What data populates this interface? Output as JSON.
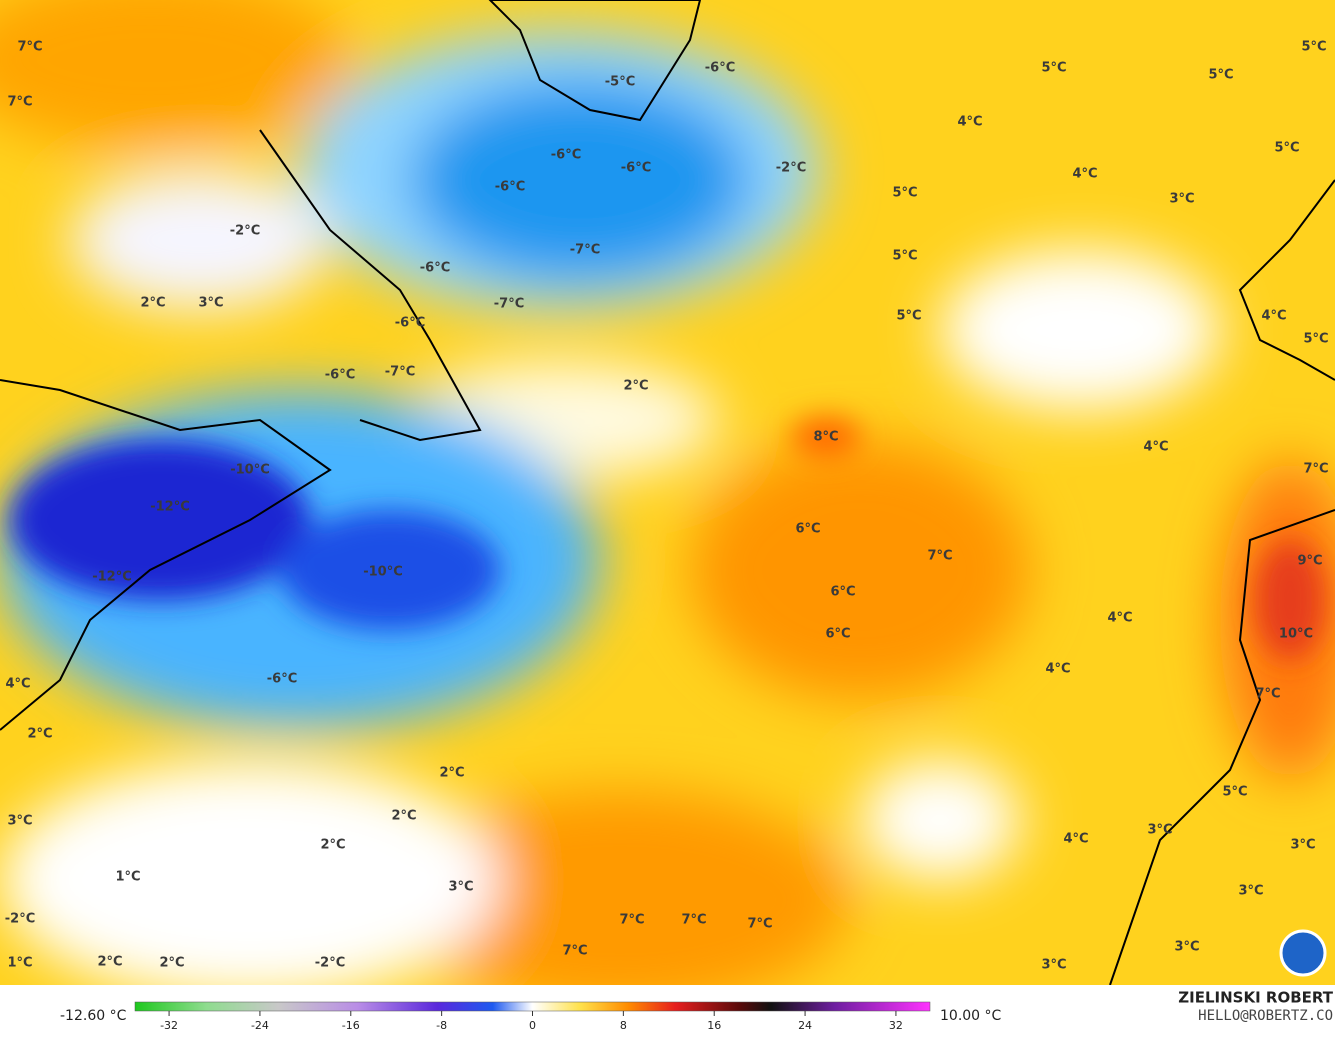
{
  "labels": [
    "7°C",
    "7°C",
    "-2°C",
    "2°C",
    "3°C",
    "-6°C",
    "-6°C",
    "-7°C",
    "-10°C",
    "-12°C",
    "-12°C",
    "-10°C",
    "-6°C",
    "4°C",
    "2°C",
    "3°C",
    "1°C",
    "-2°C",
    "1°C",
    "2°C",
    "2°C",
    "-2°C",
    "2°C",
    "2°C",
    "2°C",
    "3°C",
    "7°C",
    "7°C",
    "7°C",
    "7°C",
    "-5°C",
    "-6°C",
    "-6°C",
    "-6°C",
    "-6°C",
    "-7°C",
    "-6°C",
    "-7°C",
    "-2°C",
    "2°C",
    "8°C",
    "6°C",
    "7°C",
    "6°C",
    "6°C",
    "4°C",
    "4°C",
    "5°C",
    "5°C",
    "5°C",
    "4°C",
    "4°C",
    "5°C",
    "5°C",
    "5°C",
    "5°C",
    "3°C",
    "4°C",
    "5°C",
    "4°C",
    "7°C",
    "9°C",
    "10°C",
    "7°C",
    "5°C",
    "4°C",
    "3°C",
    "3°C",
    "3°C",
    "3°C",
    "3°C"
  ],
  "colorbar": {
    "min_label": "-12.60 °C",
    "max_label": "10.00 °C",
    "lim": [
      -35,
      35
    ],
    "ticks": [
      -32,
      -24,
      -16,
      -8,
      0,
      8,
      16,
      24,
      32
    ]
  },
  "credit": {
    "name": "ZIELINSKI ROBERT",
    "contact": "HELLO@ROBERTZ.CO"
  }
}
